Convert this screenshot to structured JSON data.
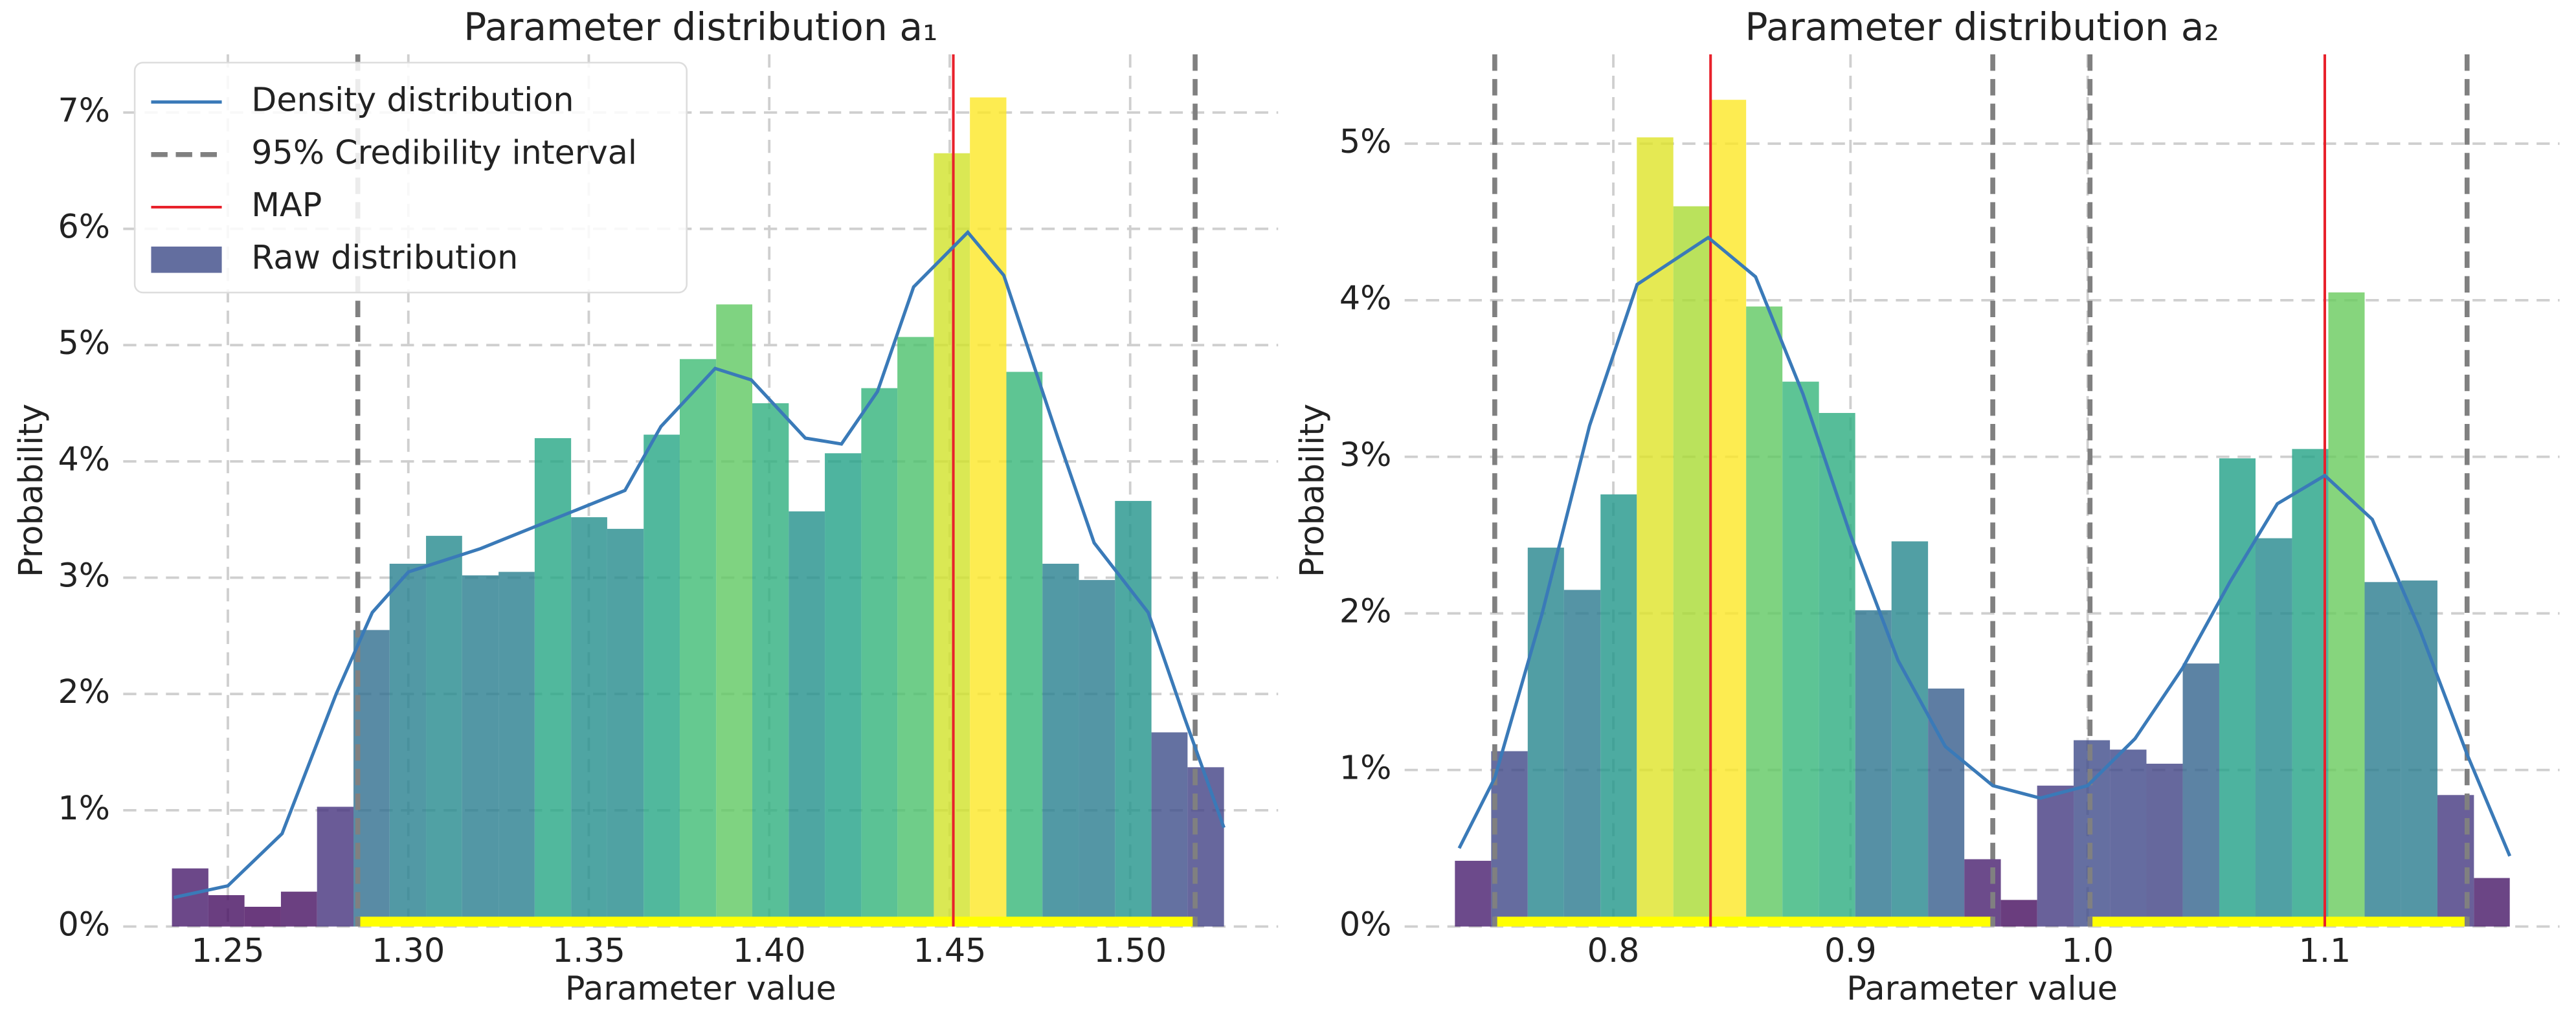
{
  "chart_data": [
    {
      "type": "histogram",
      "title": "Parameter distribution a₁",
      "xlabel": "Parameter value",
      "ylabel": "Probability",
      "bins": [
        1.2345,
        1.2446,
        1.2546,
        1.2647,
        1.2747,
        1.2848,
        1.2948,
        1.3049,
        1.3149,
        1.325,
        1.335,
        1.3451,
        1.3551,
        1.3652,
        1.3752,
        1.3853,
        1.3953,
        1.4054,
        1.4154,
        1.4255,
        1.4355,
        1.4456,
        1.4556,
        1.4657,
        1.4757,
        1.4858,
        1.4958,
        1.5059,
        1.5159,
        1.526
      ],
      "values": [
        0.5,
        0.27,
        0.17,
        0.3,
        1.03,
        2.55,
        3.12,
        3.36,
        3.02,
        3.05,
        4.2,
        3.52,
        3.42,
        4.23,
        4.88,
        5.35,
        4.5,
        3.57,
        4.07,
        4.63,
        5.07,
        6.65,
        7.13,
        4.77,
        3.12,
        2.98,
        3.66,
        1.67,
        1.37
      ],
      "hist": {
        "name": "Raw distribution",
        "colormap": "viridis",
        "alpha": 0.8,
        "color": "#636e9f"
      },
      "density": {
        "name": "Density distribution",
        "color": "#3a7ab8",
        "x": [
          1.235,
          1.25,
          1.265,
          1.28,
          1.29,
          1.3,
          1.32,
          1.34,
          1.36,
          1.37,
          1.385,
          1.395,
          1.41,
          1.42,
          1.43,
          1.44,
          1.455,
          1.465,
          1.48,
          1.49,
          1.505,
          1.515,
          1.526
        ],
        "y": [
          0.25,
          0.35,
          0.8,
          2.0,
          2.7,
          3.05,
          3.25,
          3.5,
          3.75,
          4.3,
          4.8,
          4.7,
          4.2,
          4.15,
          4.6,
          5.5,
          5.97,
          5.6,
          4.2,
          3.3,
          2.7,
          1.8,
          0.85
        ]
      },
      "ci": {
        "name": "95% Credibility interval",
        "color": "#808080",
        "bounds": [
          [
            1.286,
            1.518
          ]
        ],
        "highlight": "#ffff00"
      },
      "map": {
        "name": "MAP",
        "color": "#e8212b",
        "values": [
          1.451
        ]
      },
      "xlim": [
        1.221,
        1.541
      ],
      "ylim": [
        0,
        7.5
      ],
      "xticks": [
        1.25,
        {
          "value": 1.3,
          "label": "1.30"
        },
        1.35,
        {
          "value": 1.4,
          "label": "1.40"
        },
        1.45,
        {
          "value": 1.5,
          "label": "1.50"
        }
      ],
      "yticks": [
        {
          "value": 0,
          "label": "0%"
        },
        {
          "value": 1,
          "label": "1%"
        },
        {
          "value": 2,
          "label": "2%"
        },
        {
          "value": 3,
          "label": "3%"
        },
        {
          "value": 4,
          "label": "4%"
        },
        {
          "value": 5,
          "label": "5%"
        },
        {
          "value": 6,
          "label": "6%"
        },
        {
          "value": 7,
          "label": "7%"
        }
      ],
      "grid": true,
      "legend": "upper left"
    },
    {
      "type": "histogram",
      "title": "Parameter distribution a₂",
      "xlabel": "Parameter value",
      "ylabel": "Probability",
      "bins": [
        0.7332,
        0.7485,
        0.7639,
        0.7792,
        0.7946,
        0.8099,
        0.8253,
        0.8406,
        0.856,
        0.8713,
        0.8867,
        0.902,
        0.9173,
        0.9327,
        0.948,
        0.9634,
        0.9787,
        0.9941,
        1.0094,
        1.0248,
        1.0401,
        1.0555,
        1.0708,
        1.0862,
        1.1015,
        1.1168,
        1.1322,
        1.1475,
        1.1629,
        1.178
      ],
      "values": [
        0.42,
        1.12,
        2.42,
        2.15,
        2.76,
        5.04,
        4.6,
        5.28,
        3.96,
        3.48,
        3.28,
        2.02,
        2.46,
        1.52,
        0.43,
        0.17,
        0.9,
        1.19,
        1.13,
        1.04,
        1.68,
        2.99,
        2.48,
        3.05,
        4.05,
        2.2,
        2.21,
        0.84,
        0.31
      ],
      "hist": {
        "colormap": "viridis",
        "alpha": 0.8
      },
      "density": {
        "color": "#3a7ab8",
        "x": [
          0.735,
          0.75,
          0.77,
          0.79,
          0.81,
          0.84,
          0.86,
          0.88,
          0.9,
          0.92,
          0.94,
          0.96,
          0.98,
          1.0,
          1.02,
          1.04,
          1.06,
          1.08,
          1.1,
          1.12,
          1.14,
          1.16,
          1.178
        ],
        "y": [
          0.5,
          0.95,
          2.0,
          3.2,
          4.1,
          4.4,
          4.15,
          3.4,
          2.5,
          1.7,
          1.15,
          0.9,
          0.82,
          0.9,
          1.2,
          1.65,
          2.2,
          2.7,
          2.88,
          2.6,
          1.9,
          1.1,
          0.45
        ]
      },
      "ci": {
        "color": "#808080",
        "bounds": [
          [
            0.75,
            0.96
          ],
          [
            1.001,
            1.16
          ]
        ],
        "highlight": "#ffff00"
      },
      "map": {
        "color": "#e8212b",
        "values": [
          0.841,
          1.1
        ]
      },
      "xlim": [
        0.712,
        1.199
      ],
      "ylim": [
        0,
        5.57
      ],
      "xticks": [
        0.8,
        0.9,
        {
          "value": 1.0,
          "label": "1.0"
        },
        1.1
      ],
      "yticks": [
        {
          "value": 0,
          "label": "0%"
        },
        {
          "value": 1,
          "label": "1%"
        },
        {
          "value": 2,
          "label": "2%"
        },
        {
          "value": 3,
          "label": "3%"
        },
        {
          "value": 4,
          "label": "4%"
        },
        {
          "value": 5,
          "label": "5%"
        }
      ],
      "grid": true
    }
  ]
}
